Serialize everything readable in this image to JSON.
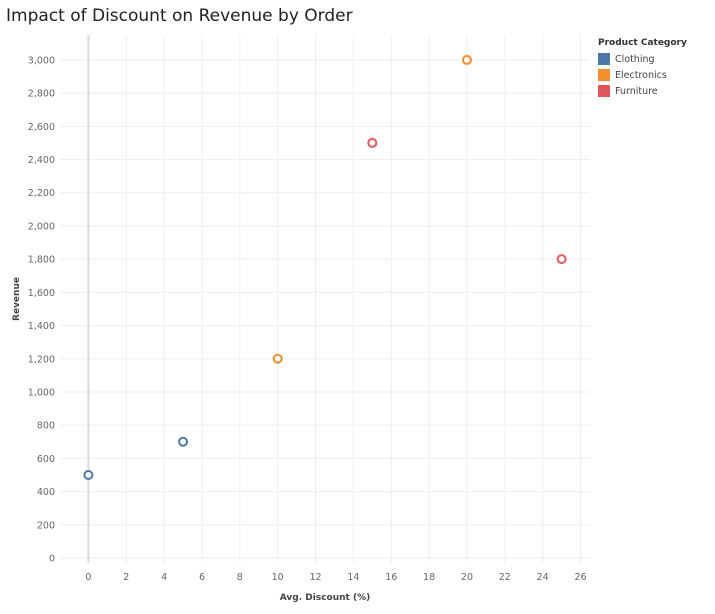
{
  "title": "Impact of Discount on Revenue by Order",
  "legend": {
    "title": "Product Category",
    "items": [
      {
        "label": "Clothing",
        "color": "#4e79a7"
      },
      {
        "label": "Electronics",
        "color": "#f28e2b"
      },
      {
        "label": "Furniture",
        "color": "#e15759"
      }
    ]
  },
  "chart_data": {
    "type": "scatter",
    "title": "Impact of Discount on Revenue by Order",
    "xlabel": "Avg. Discount (%)",
    "ylabel": "Revenue",
    "xlim": [
      -1.5,
      26.5
    ],
    "ylim": [
      -30,
      3150
    ],
    "xticks": [
      0,
      2,
      4,
      6,
      8,
      10,
      12,
      14,
      16,
      18,
      20,
      22,
      24,
      26
    ],
    "yticks": [
      0,
      200,
      400,
      600,
      800,
      1000,
      1200,
      1400,
      1600,
      1800,
      2000,
      2200,
      2400,
      2600,
      2800,
      3000
    ],
    "x_tick_labels": [
      "0",
      "2",
      "4",
      "6",
      "8",
      "10",
      "12",
      "14",
      "16",
      "18",
      "20",
      "22",
      "24",
      "26"
    ],
    "y_tick_labels": [
      "0",
      "200",
      "400",
      "600",
      "800",
      "1,000",
      "1,200",
      "1,400",
      "1,600",
      "1,800",
      "2,000",
      "2,200",
      "2,400",
      "2,600",
      "2,800",
      "3,000"
    ],
    "grid": true,
    "legend_position": "top-right",
    "series": [
      {
        "name": "Clothing",
        "color": "#4e79a7",
        "points": [
          {
            "x": 0,
            "y": 500
          },
          {
            "x": 5,
            "y": 700
          }
        ]
      },
      {
        "name": "Electronics",
        "color": "#f28e2b",
        "points": [
          {
            "x": 10,
            "y": 1200
          },
          {
            "x": 20,
            "y": 3000
          }
        ]
      },
      {
        "name": "Furniture",
        "color": "#e15759",
        "points": [
          {
            "x": 15,
            "y": 2500
          },
          {
            "x": 25,
            "y": 1800
          }
        ]
      }
    ]
  }
}
